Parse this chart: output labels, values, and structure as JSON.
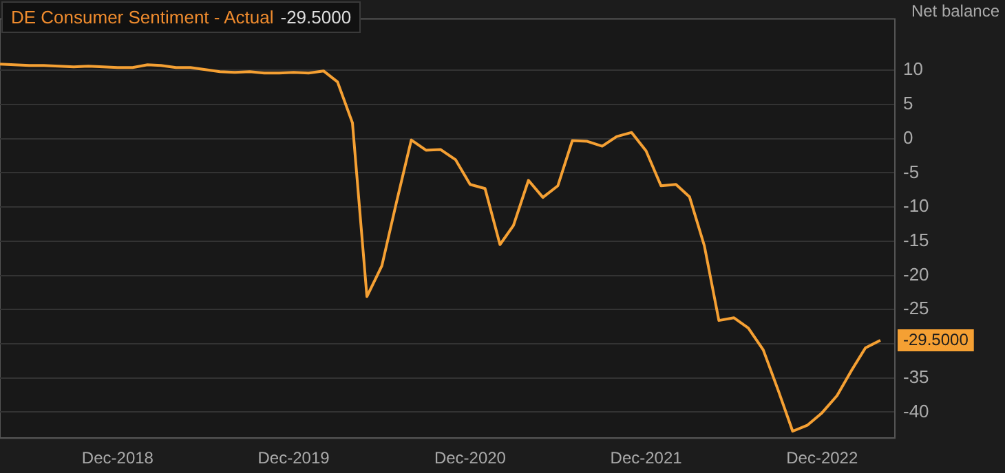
{
  "chart_data": {
    "type": "line",
    "title": "DE Consumer Sentiment - Actual",
    "subtitle": "-29.5000",
    "ylabel": "Net balance",
    "x": [
      "2018-04",
      "2018-05",
      "2018-06",
      "2018-07",
      "2018-08",
      "2018-09",
      "2018-10",
      "2018-11",
      "2018-12",
      "2019-01",
      "2019-02",
      "2019-03",
      "2019-04",
      "2019-05",
      "2019-06",
      "2019-07",
      "2019-08",
      "2019-09",
      "2019-10",
      "2019-11",
      "2019-12",
      "2020-01",
      "2020-02",
      "2020-03",
      "2020-04",
      "2020-05",
      "2020-06",
      "2020-07",
      "2020-08",
      "2020-09",
      "2020-10",
      "2020-11",
      "2020-12",
      "2021-01",
      "2021-02",
      "2021-03",
      "2021-04",
      "2021-05",
      "2021-06",
      "2021-07",
      "2021-08",
      "2021-09",
      "2021-10",
      "2021-11",
      "2021-12",
      "2022-01",
      "2022-02",
      "2022-03",
      "2022-04",
      "2022-05",
      "2022-06",
      "2022-07",
      "2022-08",
      "2022-09",
      "2022-10",
      "2022-11",
      "2022-12",
      "2023-01",
      "2023-02",
      "2023-03",
      "2023-04"
    ],
    "series": [
      {
        "color": "#f5a033",
        "values": [
          10.9,
          10.8,
          10.7,
          10.7,
          10.6,
          10.5,
          10.6,
          10.5,
          10.4,
          10.4,
          10.8,
          10.7,
          10.4,
          10.4,
          10.1,
          9.8,
          9.7,
          9.8,
          9.6,
          9.6,
          9.7,
          9.6,
          9.9,
          8.3,
          2.3,
          -23.1,
          -18.6,
          -9.4,
          -0.2,
          -1.7,
          -1.6,
          -3.1,
          -6.7,
          -7.3,
          -15.5,
          -12.7,
          -6.1,
          -8.6,
          -6.9,
          -0.3,
          -0.4,
          -1.1,
          0.3,
          0.9,
          -1.8,
          -6.9,
          -6.7,
          -8.5,
          -15.7,
          -26.6,
          -26.2,
          -27.7,
          -30.9,
          -36.8,
          -42.8,
          -41.9,
          -40.1,
          -37.6,
          -33.8,
          -30.6,
          -29.5
        ]
      }
    ],
    "xlim": [
      "2018-04",
      "2023-05"
    ],
    "xticks": [
      {
        "value": "2018-12",
        "label": "Dec-2018"
      },
      {
        "value": "2019-12",
        "label": "Dec-2019"
      },
      {
        "value": "2020-12",
        "label": "Dec-2020"
      },
      {
        "value": "2021-12",
        "label": "Dec-2021"
      },
      {
        "value": "2022-12",
        "label": "Dec-2022"
      }
    ],
    "ylim": [
      -43.8,
      17.5
    ],
    "yticks": [
      10,
      5,
      0,
      -5,
      -10,
      -15,
      -20,
      -25,
      {
        "value": -30,
        "label": null
      },
      -35,
      -40
    ],
    "annotations": [
      {
        "text": "-29.5000",
        "x": "2023-04",
        "y": -29.5
      }
    ],
    "grid": "y",
    "legend": false,
    "marker": "none",
    "line_style": "solid"
  }
}
